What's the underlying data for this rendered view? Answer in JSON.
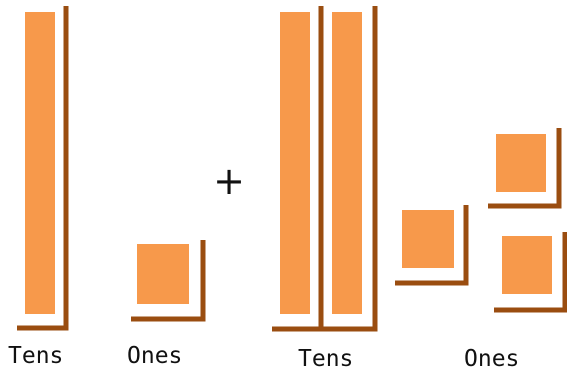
{
  "colors": {
    "block_fill": "#F7994B",
    "frame": "#9A4D10",
    "text": "#111111",
    "background": "#FFFFFF"
  },
  "left_group": {
    "tens_label": "Tens",
    "ones_label": "Ones",
    "tens_rods": 1,
    "ones_units": 1
  },
  "operator": "+",
  "right_group": {
    "tens_label": "Tens",
    "ones_label": "Ones",
    "tens_rods": 2,
    "ones_units": 3
  }
}
